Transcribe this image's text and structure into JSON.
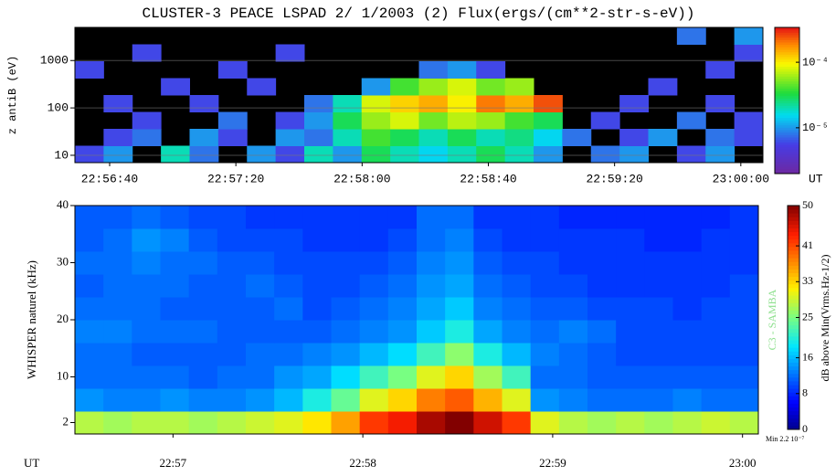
{
  "chart_data": [
    {
      "type": "heatmap",
      "title": "CLUSTER-3  PEACE LSPAD 2/ 1/2003 (2) Flux(ergs/(cm**2-str-s-eV))",
      "ylabel": "z antiB (eV)",
      "x_unit_label": "UT",
      "xlim": [
        82589,
        82807
      ],
      "xticks": [
        {
          "value": 82600,
          "label": "22:56:40"
        },
        {
          "value": 82640,
          "label": "22:57:20"
        },
        {
          "value": 82680,
          "label": "22:58:00"
        },
        {
          "value": 82720,
          "label": "22:58:40"
        },
        {
          "value": 82760,
          "label": "22:59:20"
        },
        {
          "value": 82800,
          "label": "23:00:00"
        }
      ],
      "ylim": [
        7,
        5000
      ],
      "ylog": true,
      "yticks": [
        10,
        100,
        1000
      ],
      "grid": true,
      "colormap": "rainbow",
      "colorbar": {
        "lim": [
          2e-06,
          0.00034
        ],
        "log": true,
        "ticks": [
          {
            "value": 0.0001,
            "label": "10⁻⁴"
          },
          {
            "value": 1e-05,
            "label": "10⁻⁵"
          }
        ]
      },
      "z": [
        [
          6e-06,
          1e-05,
          null,
          2e-05,
          8e-06,
          null,
          1e-05,
          6e-06,
          2e-05,
          1e-05,
          3e-05,
          2e-05,
          1.5e-05,
          2e-05,
          3e-05,
          2e-05,
          1e-05,
          null,
          8e-06,
          1e-05,
          null,
          6e-06,
          1e-05,
          null
        ],
        [
          null,
          6e-06,
          8e-06,
          null,
          1e-05,
          6e-06,
          null,
          1e-05,
          8e-06,
          2e-05,
          4e-05,
          3e-05,
          2e-05,
          3e-05,
          2e-05,
          2.5e-05,
          1.5e-05,
          8e-06,
          null,
          6e-06,
          1e-05,
          null,
          8e-06,
          6e-06
        ],
        [
          null,
          null,
          6e-06,
          null,
          null,
          8e-06,
          null,
          6e-06,
          1e-05,
          3e-05,
          6e-05,
          8e-05,
          5e-05,
          7e-05,
          6e-05,
          4e-05,
          3e-05,
          null,
          6e-06,
          null,
          null,
          8e-06,
          null,
          6e-06
        ],
        [
          null,
          6e-06,
          null,
          null,
          6e-06,
          null,
          null,
          null,
          8e-06,
          2e-05,
          8e-05,
          0.00012,
          0.00015,
          0.0001,
          0.0002,
          0.00015,
          0.00025,
          null,
          null,
          6e-06,
          null,
          null,
          6e-06,
          null
        ],
        [
          null,
          null,
          null,
          6e-06,
          null,
          null,
          6e-06,
          null,
          null,
          null,
          1e-05,
          4e-05,
          6e-05,
          8e-05,
          5e-05,
          6e-05,
          null,
          null,
          null,
          null,
          6e-06,
          null,
          null,
          null
        ],
        [
          6e-06,
          null,
          null,
          null,
          null,
          6e-06,
          null,
          null,
          null,
          null,
          null,
          null,
          8e-06,
          1e-05,
          6e-06,
          null,
          null,
          null,
          null,
          null,
          null,
          null,
          6e-06,
          null
        ],
        [
          null,
          null,
          6e-06,
          null,
          null,
          null,
          null,
          6e-06,
          null,
          null,
          null,
          null,
          null,
          null,
          null,
          null,
          null,
          null,
          null,
          null,
          null,
          null,
          null,
          6e-06
        ],
        [
          null,
          null,
          null,
          null,
          null,
          null,
          null,
          null,
          null,
          null,
          null,
          null,
          null,
          null,
          null,
          null,
          null,
          null,
          null,
          null,
          null,
          8e-06,
          null,
          1e-05
        ]
      ]
    },
    {
      "type": "heatmap",
      "ylabel": "WHISPER naturel (kHz)",
      "x_unit_label": "UT",
      "xlim": [
        82589,
        82805
      ],
      "xticks": [
        {
          "value": 82620,
          "label": "22:57"
        },
        {
          "value": 82680,
          "label": "22:58"
        },
        {
          "value": 82740,
          "label": "22:59"
        },
        {
          "value": 82800,
          "label": "23:00"
        }
      ],
      "ylim": [
        0,
        40
      ],
      "yticks": [
        2,
        10,
        20,
        30,
        40
      ],
      "colormap": "jet",
      "colorbar": {
        "lim": [
          0,
          50
        ],
        "log": false,
        "ticks": [
          0,
          8,
          16,
          25,
          33,
          41,
          50
        ],
        "label": "dB above Min(Vrms.Hz-1/2)"
      },
      "annotations": [
        "C3 - SAMBA",
        "Min 2.2 10⁻⁷"
      ],
      "z": [
        [
          28,
          27,
          28,
          28,
          27,
          28,
          29,
          30,
          32,
          36,
          42,
          44,
          48,
          50,
          46,
          42,
          30,
          28,
          27,
          28,
          27,
          28,
          29,
          28
        ],
        [
          14,
          13,
          13,
          14,
          13,
          13,
          14,
          16,
          20,
          24,
          30,
          33,
          38,
          40,
          35,
          30,
          14,
          13,
          12,
          12,
          12,
          13,
          12,
          12
        ],
        [
          12,
          12,
          12,
          12,
          11,
          12,
          12,
          14,
          15,
          18,
          22,
          25,
          30,
          33,
          27,
          22,
          12,
          12,
          11,
          11,
          11,
          11,
          11,
          11
        ],
        [
          12,
          12,
          11,
          11,
          11,
          11,
          12,
          12,
          13,
          14,
          16,
          18,
          22,
          26,
          20,
          16,
          13,
          12,
          11,
          10,
          10,
          10,
          10,
          10
        ],
        [
          13,
          13,
          12,
          12,
          12,
          11,
          11,
          11,
          11,
          12,
          13,
          14,
          17,
          20,
          15,
          13,
          12,
          13,
          12,
          10,
          10,
          10,
          10,
          10
        ],
        [
          12,
          12,
          12,
          11,
          11,
          11,
          11,
          12,
          10,
          11,
          12,
          13,
          15,
          17,
          13,
          12,
          11,
          11,
          10,
          10,
          10,
          9,
          10,
          10
        ],
        [
          11,
          12,
          12,
          12,
          11,
          11,
          12,
          11,
          10,
          10,
          11,
          12,
          14,
          15,
          12,
          11,
          10,
          10,
          9,
          9,
          9,
          9,
          9,
          10
        ],
        [
          12,
          12,
          13,
          12,
          12,
          11,
          11,
          10,
          10,
          10,
          10,
          11,
          13,
          14,
          11,
          10,
          10,
          9,
          9,
          9,
          9,
          9,
          9,
          9
        ],
        [
          11,
          12,
          14,
          13,
          11,
          10,
          10,
          10,
          9,
          9,
          9,
          10,
          12,
          13,
          10,
          9,
          9,
          9,
          9,
          9,
          8,
          8,
          9,
          9
        ],
        [
          11,
          11,
          12,
          11,
          10,
          10,
          9,
          9,
          9,
          9,
          9,
          9,
          12,
          12,
          9,
          9,
          9,
          8,
          8,
          8,
          8,
          8,
          8,
          9
        ]
      ]
    }
  ]
}
